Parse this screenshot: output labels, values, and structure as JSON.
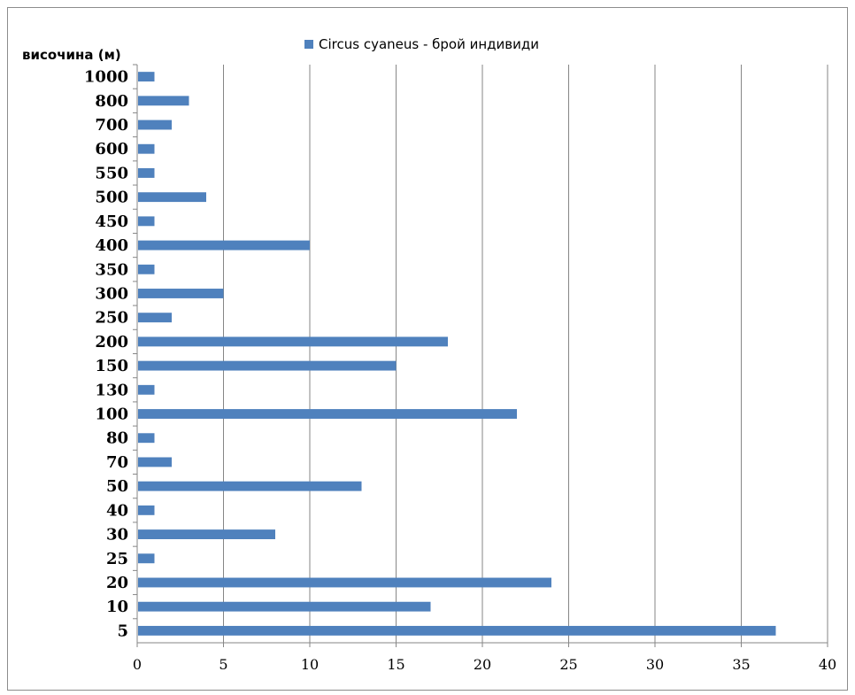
{
  "chart_data": {
    "type": "bar",
    "orientation": "horizontal",
    "ylabel": "височина (м)",
    "xlabel": "",
    "categories": [
      "1000",
      "800",
      "700",
      "600",
      "550",
      "500",
      "450",
      "400",
      "350",
      "300",
      "250",
      "200",
      "150",
      "130",
      "100",
      "80",
      "70",
      "50",
      "40",
      "30",
      "25",
      "20",
      "10",
      "5"
    ],
    "series": [
      {
        "name": "Circus cyaneus - брой индивиди",
        "values": [
          1,
          3,
          2,
          1,
          1,
          4,
          1,
          10,
          1,
          5,
          2,
          18,
          15,
          1,
          22,
          1,
          2,
          13,
          1,
          8,
          1,
          24,
          17,
          37
        ]
      }
    ],
    "xlim": [
      0,
      40
    ],
    "xticks": [
      0,
      5,
      10,
      15,
      20,
      25,
      30,
      35,
      40
    ],
    "grid": "vertical",
    "legend_position": "top-center",
    "bar_color": "#4f81bd"
  }
}
